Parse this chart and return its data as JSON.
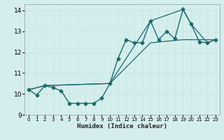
{
  "title": "",
  "xlabel": "Humidex (Indice chaleur)",
  "ylabel": "",
  "xlim": [
    -0.5,
    23.5
  ],
  "ylim": [
    9,
    14.3
  ],
  "yticks": [
    9,
    10,
    11,
    12,
    13,
    14
  ],
  "xticks": [
    0,
    1,
    2,
    3,
    4,
    5,
    6,
    7,
    8,
    9,
    10,
    11,
    12,
    13,
    14,
    15,
    16,
    17,
    18,
    19,
    20,
    21,
    22,
    23
  ],
  "bg_color": "#d4eeed",
  "grid_color_minor": "#c8e4e4",
  "grid_color_major": "#c8e4e4",
  "line_color": "#1a6b6b",
  "series_main": {
    "x": [
      0,
      1,
      2,
      3,
      4,
      5,
      6,
      7,
      8,
      9,
      10,
      11,
      12,
      13,
      14,
      15,
      16,
      17,
      18,
      19,
      20,
      21,
      22,
      23
    ],
    "y": [
      10.2,
      9.95,
      10.4,
      10.3,
      10.15,
      9.55,
      9.55,
      9.55,
      9.55,
      9.8,
      10.5,
      11.7,
      12.6,
      12.45,
      12.45,
      13.5,
      12.6,
      13.0,
      12.65,
      14.05,
      13.35,
      12.5,
      12.45,
      12.6
    ],
    "marker": "D",
    "markersize": 2.5,
    "linewidth": 1.0
  },
  "series_upper": {
    "x": [
      0,
      2,
      10,
      15,
      19,
      20,
      22,
      23
    ],
    "y": [
      10.2,
      10.4,
      10.5,
      13.5,
      14.05,
      13.35,
      12.45,
      12.6
    ],
    "linewidth": 0.9
  },
  "series_lower": {
    "x": [
      0,
      2,
      10,
      15,
      19,
      23
    ],
    "y": [
      10.2,
      10.4,
      10.5,
      12.45,
      12.6,
      12.6
    ],
    "linewidth": 0.9
  }
}
